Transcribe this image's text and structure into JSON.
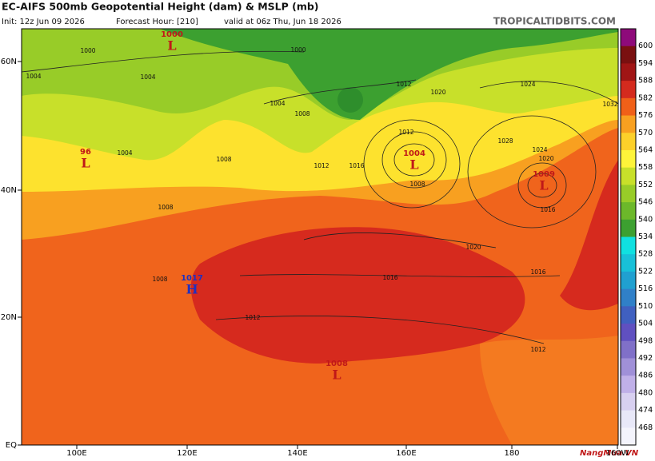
{
  "header": {
    "title": "EC-AIFS 500mb Geopotential Height (dam) & MSLP (mb)",
    "init": "Init: 12z Jun 09 2026",
    "forecast_hour": "Forecast Hour: [210]",
    "valid": "valid at 06z Thu, Jun 18 2026",
    "brand": "TROPICALTIDBITS.COM"
  },
  "axes": {
    "lat": [
      "60N",
      "40N",
      "20N",
      "EQ"
    ],
    "lon": [
      "100E",
      "120E",
      "140E",
      "160E",
      "180",
      "160W"
    ]
  },
  "colorbar": {
    "labels": [
      "600",
      "594",
      "588",
      "582",
      "576",
      "570",
      "564",
      "558",
      "552",
      "546",
      "540",
      "534",
      "528",
      "522",
      "516",
      "510",
      "504",
      "498",
      "492",
      "486",
      "480",
      "474",
      "468"
    ]
  },
  "pressure_centers": [
    {
      "kind": "L",
      "value": "1000"
    },
    {
      "kind": "L",
      "value": "96"
    },
    {
      "kind": "L",
      "value": "1004"
    },
    {
      "kind": "L",
      "value": "1009"
    },
    {
      "kind": "H",
      "value": "1017"
    },
    {
      "kind": "L",
      "value": "1008"
    }
  ],
  "isobar_labels": [
    "1000",
    "1004",
    "1004",
    "1004",
    "1008",
    "1004",
    "1008",
    "1012",
    "1016",
    "1012",
    "1012",
    "1020",
    "1024",
    "1032",
    "1028",
    "1024",
    "1020",
    "1016",
    "1008",
    "1020",
    "1016",
    "1016",
    "1012",
    "1012",
    "1008",
    "1008",
    "1000"
  ],
  "watermark": "NangMua.VN"
}
